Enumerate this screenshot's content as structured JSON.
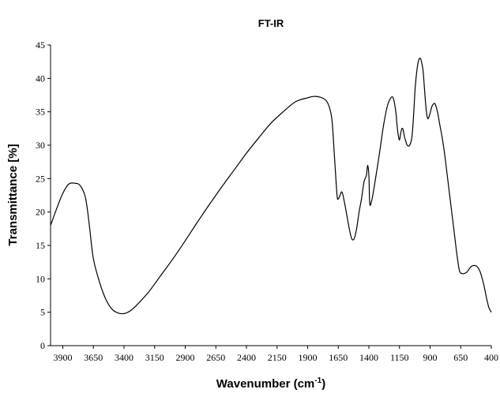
{
  "chart_data": {
    "type": "line",
    "title": "FT-IR",
    "xlabel": "Wavenumber (cm",
    "xlabel_sup": "-1",
    "xlabel_close": ")",
    "ylabel": "Transmittance [%]",
    "xlim": [
      4000,
      400
    ],
    "ylim": [
      0,
      45
    ],
    "x_reversed": true,
    "x_ticks": [
      3900,
      3650,
      3400,
      3150,
      2900,
      2650,
      2400,
      2150,
      1900,
      1650,
      1400,
      1150,
      900,
      650,
      400
    ],
    "y_ticks": [
      0,
      5,
      10,
      15,
      20,
      25,
      30,
      35,
      40,
      45
    ],
    "grid": false,
    "legend": "none",
    "line_color": "#000000",
    "series": [
      {
        "x": [
          4000,
          3950,
          3900,
          3850,
          3800,
          3760,
          3720,
          3700,
          3680,
          3650,
          3600,
          3550,
          3500,
          3450,
          3400,
          3350,
          3300,
          3200,
          3100,
          3000,
          2900,
          2800,
          2700,
          2600,
          2500,
          2400,
          2300,
          2200,
          2100,
          2000,
          1900,
          1850,
          1800,
          1750,
          1720,
          1700,
          1680,
          1660,
          1650,
          1640,
          1620,
          1600,
          1580,
          1560,
          1540,
          1520,
          1500,
          1480,
          1460,
          1440,
          1420,
          1410,
          1400,
          1395,
          1390,
          1380,
          1370,
          1350,
          1320,
          1300,
          1280,
          1250,
          1220,
          1200,
          1180,
          1170,
          1160,
          1150,
          1140,
          1130,
          1120,
          1110,
          1100,
          1090,
          1080,
          1070,
          1060,
          1050,
          1040,
          1030,
          1020,
          1000,
          980,
          960,
          950,
          940,
          930,
          920,
          910,
          900,
          890,
          880,
          860,
          840,
          820,
          800,
          780,
          760,
          740,
          720,
          700,
          680,
          660,
          640,
          620,
          600,
          580,
          560,
          540,
          520,
          510,
          500,
          490,
          480,
          460,
          440,
          420,
          400
        ],
        "y": [
          18,
          20.5,
          22.8,
          24.2,
          24.3,
          24,
          22.5,
          20.5,
          17.5,
          13,
          9.5,
          7,
          5.5,
          4.9,
          4.8,
          5.2,
          6,
          8,
          10.5,
          13,
          15.7,
          18.5,
          21.2,
          23.8,
          26.3,
          28.8,
          31.1,
          33.3,
          35,
          36.5,
          37.1,
          37.3,
          37.2,
          36.7,
          35.5,
          33.5,
          28,
          22.5,
          22,
          22.3,
          23,
          21.5,
          19.5,
          17.5,
          16,
          16,
          17.5,
          20,
          22,
          24.5,
          25.5,
          27,
          25.5,
          22,
          21,
          21.5,
          22.3,
          24.5,
          28,
          30.5,
          33,
          35.8,
          37.1,
          37,
          35,
          33,
          31.5,
          30.8,
          31.8,
          32.5,
          32.3,
          31.3,
          30.7,
          30.1,
          29.9,
          29.9,
          30.3,
          31,
          33,
          36,
          39,
          42.2,
          43,
          41.5,
          39.5,
          37,
          35,
          34,
          34.2,
          34.8,
          35.5,
          36,
          36.2,
          35,
          33,
          31,
          28.5,
          25.5,
          22.5,
          19.5,
          16.5,
          13.5,
          11.2,
          10.8,
          10.8,
          11,
          11.5,
          11.9,
          12,
          11.9,
          11.7,
          11.4,
          11,
          10.4,
          9,
          7.2,
          5.7,
          5
        ]
      }
    ]
  }
}
